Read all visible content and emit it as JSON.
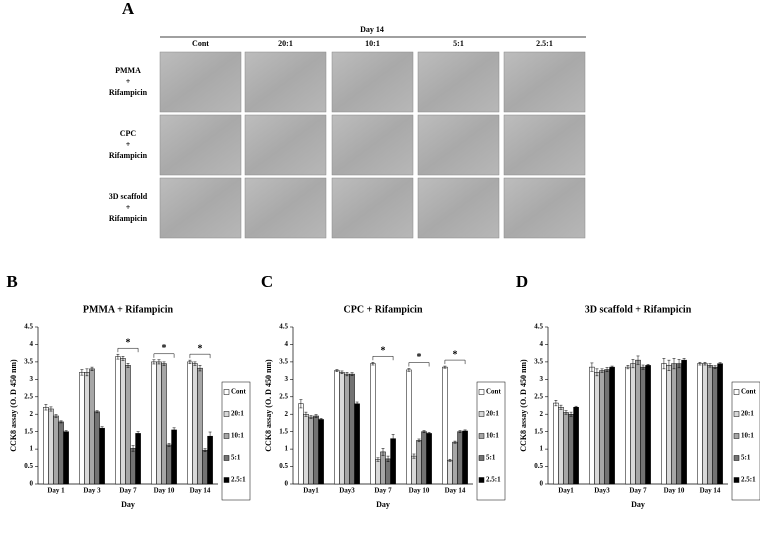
{
  "figure_a": {
    "panel": "A",
    "title": "Day 14",
    "columns": [
      "Cont",
      "20:1",
      "10:1",
      "5:1",
      "2.5:1"
    ],
    "rows": [
      [
        "PMMA",
        "+",
        "Rifampicin"
      ],
      [
        "CPC",
        "+",
        "Rifampicin"
      ],
      [
        "3D scaffold",
        "+",
        "Rifampicin"
      ]
    ]
  },
  "chart_data": [
    {
      "type": "bar",
      "panel": "B",
      "title": "PMMA + Rifampicin",
      "y_label": "CCK8 assay (O. D 450 nm)",
      "x_label": "Day",
      "categories": [
        "Day 1",
        "Day 3",
        "Day 7",
        "Day 10",
        "Day 14"
      ],
      "series": [
        {
          "name": "Cont",
          "color": "#ffffff",
          "values": [
            2.2,
            3.2,
            3.65,
            3.5,
            3.5
          ],
          "errors": [
            0.08,
            0.08,
            0.07,
            0.06,
            0.05
          ]
        },
        {
          "name": "20:1",
          "color": "#d9d9d9",
          "values": [
            2.15,
            3.2,
            3.6,
            3.5,
            3.45
          ],
          "errors": [
            0.06,
            0.1,
            0.06,
            0.06,
            0.05
          ]
        },
        {
          "name": "10:1",
          "color": "#a6a6a6",
          "values": [
            1.95,
            3.3,
            3.4,
            3.45,
            3.32
          ],
          "errors": [
            0.04,
            0.05,
            0.06,
            0.05,
            0.08
          ]
        },
        {
          "name": "5:1",
          "color": "#737373",
          "values": [
            1.78,
            2.07,
            1.02,
            1.12,
            0.97
          ],
          "errors": [
            0.03,
            0.03,
            0.08,
            0.04,
            0.04
          ]
        },
        {
          "name": "2.5:1",
          "color": "#000000",
          "values": [
            1.5,
            1.6,
            1.45,
            1.55,
            1.37
          ],
          "errors": [
            0.03,
            0.04,
            0.05,
            0.06,
            0.12
          ]
        }
      ],
      "ylim": [
        0,
        4.5
      ],
      "yticks": [
        0,
        0.5,
        1,
        1.5,
        2,
        2.5,
        3,
        3.5,
        4,
        4.5
      ],
      "annotations": [
        {
          "text": "*",
          "x": "Day 7"
        },
        {
          "text": "*",
          "x": "Day 10"
        },
        {
          "text": "*",
          "x": "Day 14"
        }
      ]
    },
    {
      "type": "bar",
      "panel": "C",
      "title": "CPC + Rifampicin",
      "y_label": "CCK8 assay (O. D 450 nm)",
      "x_label": "Day",
      "categories": [
        "Day1",
        "Day3",
        "Day 7",
        "Day 10",
        "Day 14"
      ],
      "series": [
        {
          "name": "Cont",
          "color": "#ffffff",
          "values": [
            2.3,
            3.25,
            3.45,
            3.27,
            3.35
          ],
          "errors": [
            0.12,
            0.03,
            0.04,
            0.04,
            0.03
          ]
        },
        {
          "name": "20:1",
          "color": "#d9d9d9",
          "values": [
            2.0,
            3.2,
            0.7,
            0.8,
            0.68
          ],
          "errors": [
            0.06,
            0.04,
            0.05,
            0.06,
            0.03
          ]
        },
        {
          "name": "10:1",
          "color": "#a6a6a6",
          "values": [
            1.92,
            3.15,
            0.92,
            1.25,
            1.2
          ],
          "errors": [
            0.04,
            0.05,
            0.1,
            0.04,
            0.03
          ]
        },
        {
          "name": "5:1",
          "color": "#737373",
          "values": [
            1.95,
            3.15,
            0.72,
            1.5,
            1.5
          ],
          "errors": [
            0.04,
            0.04,
            0.08,
            0.03,
            0.03
          ]
        },
        {
          "name": "2.5:1",
          "color": "#000000",
          "values": [
            1.85,
            2.3,
            1.3,
            1.45,
            1.52
          ],
          "errors": [
            0.03,
            0.05,
            0.12,
            0.03,
            0.03
          ]
        }
      ],
      "ylim": [
        0,
        4.5
      ],
      "yticks": [
        0,
        0.5,
        1,
        1.5,
        2,
        2.5,
        3,
        3.5,
        4,
        4.5
      ],
      "annotations": [
        {
          "text": "*",
          "x": "Day 7"
        },
        {
          "text": "*",
          "x": "Day 10"
        },
        {
          "text": "*",
          "x": "Day 14"
        }
      ]
    },
    {
      "type": "bar",
      "panel": "D",
      "title": "3D scaffold + Rifampicin",
      "y_label": "CCK8 assay (O. D 450 nm)",
      "x_label": "Day",
      "categories": [
        "Day1",
        "Day3",
        "Day 7",
        "Day 10",
        "Day 14"
      ],
      "series": [
        {
          "name": "Cont",
          "color": "#ffffff",
          "values": [
            2.32,
            3.35,
            3.35,
            3.45,
            3.45
          ],
          "errors": [
            0.08,
            0.12,
            0.05,
            0.15,
            0.04
          ]
        },
        {
          "name": "20:1",
          "color": "#d9d9d9",
          "values": [
            2.2,
            3.2,
            3.45,
            3.4,
            3.45
          ],
          "errors": [
            0.06,
            0.1,
            0.12,
            0.15,
            0.04
          ]
        },
        {
          "name": "10:1",
          "color": "#a6a6a6",
          "values": [
            2.05,
            3.25,
            3.55,
            3.45,
            3.4
          ],
          "errors": [
            0.05,
            0.05,
            0.12,
            0.15,
            0.05
          ]
        },
        {
          "name": "5:1",
          "color": "#737373",
          "values": [
            2.0,
            3.28,
            3.35,
            3.45,
            3.35
          ],
          "errors": [
            0.06,
            0.06,
            0.06,
            0.12,
            0.04
          ]
        },
        {
          "name": "2.5:1",
          "color": "#000000",
          "values": [
            2.2,
            3.35,
            3.4,
            3.55,
            3.45
          ],
          "errors": [
            0.03,
            0.03,
            0.03,
            0.05,
            0.03
          ]
        }
      ],
      "ylim": [
        0,
        4.5
      ],
      "yticks": [
        0,
        0.5,
        1,
        1.5,
        2,
        2.5,
        3,
        3.5,
        4,
        4.5
      ],
      "annotations": []
    }
  ]
}
